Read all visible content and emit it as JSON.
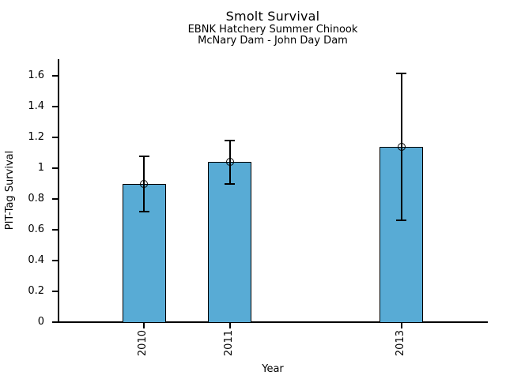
{
  "chart_data": {
    "type": "bar",
    "title": "Smolt Survival",
    "subtitle_line1": "EBNK Hatchery Summer Chinook",
    "subtitle_line2": "McNary Dam - John Day Dam",
    "xlabel": "Year",
    "ylabel": "PIT-Tag Survival",
    "categories": [
      "2010",
      "2011",
      "2013"
    ],
    "x_numeric": [
      2010,
      2011,
      2013
    ],
    "values": [
      0.9,
      1.04,
      1.14
    ],
    "error_low": [
      0.72,
      0.9,
      0.66
    ],
    "error_high": [
      1.08,
      1.18,
      1.62
    ],
    "xlim": [
      2009,
      2014
    ],
    "ylim": [
      0,
      1.71
    ],
    "yticks": [
      0,
      0.2,
      0.4,
      0.6,
      0.8,
      1,
      1.2,
      1.4,
      1.6
    ],
    "ytick_labels": [
      "0",
      "0.2",
      "0.4",
      "0.6",
      "0.8",
      "1",
      "1.2",
      "1.4",
      "1.6"
    ],
    "grid": false,
    "legend": null,
    "marker": "open-circle",
    "error_bars": "vertical-with-caps",
    "colors": {
      "bar_fill": "#58ABD5",
      "bar_edge": "#000000",
      "error_bar": "#000000",
      "marker_edge": "#000000",
      "axis": "#000000",
      "text": "#000000",
      "background": "#FFFFFF"
    }
  }
}
